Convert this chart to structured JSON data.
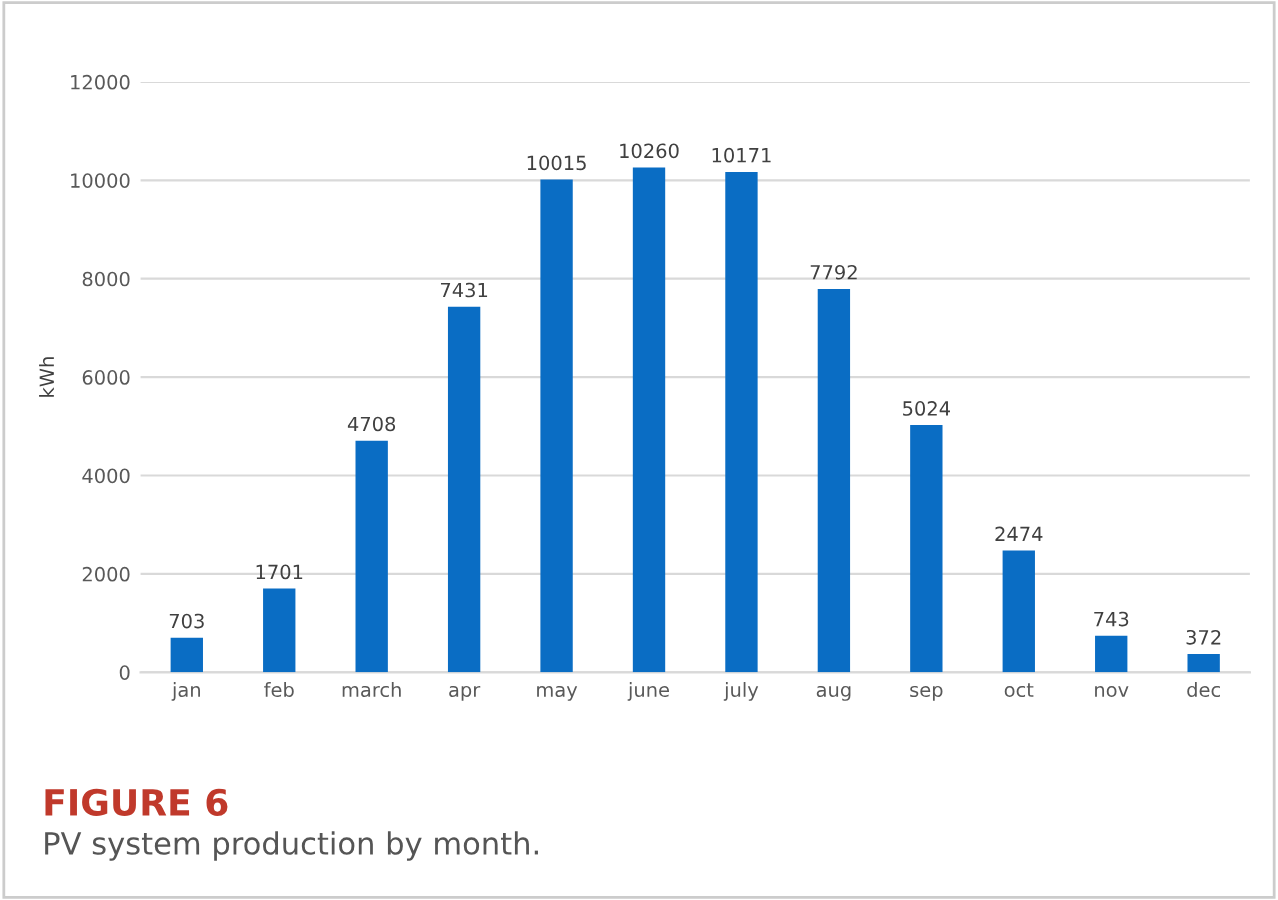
{
  "chart_data": {
    "type": "bar",
    "ylabel": "kWh",
    "categories": [
      "jan",
      "feb",
      "march",
      "apr",
      "may",
      "june",
      "july",
      "aug",
      "sep",
      "oct",
      "nov",
      "dec"
    ],
    "values": [
      703,
      1701,
      4708,
      7431,
      10015,
      10260,
      10171,
      7792,
      5024,
      2474,
      743,
      372
    ],
    "color": "#0a6dc4",
    "ylim": [
      0,
      12000
    ],
    "yticks": [
      0,
      2000,
      4000,
      6000,
      8000,
      10000,
      12000
    ],
    "grid": "y",
    "data_labels": true,
    "annotations": [
      "FIGURE 6",
      "PV system production by month."
    ]
  }
}
